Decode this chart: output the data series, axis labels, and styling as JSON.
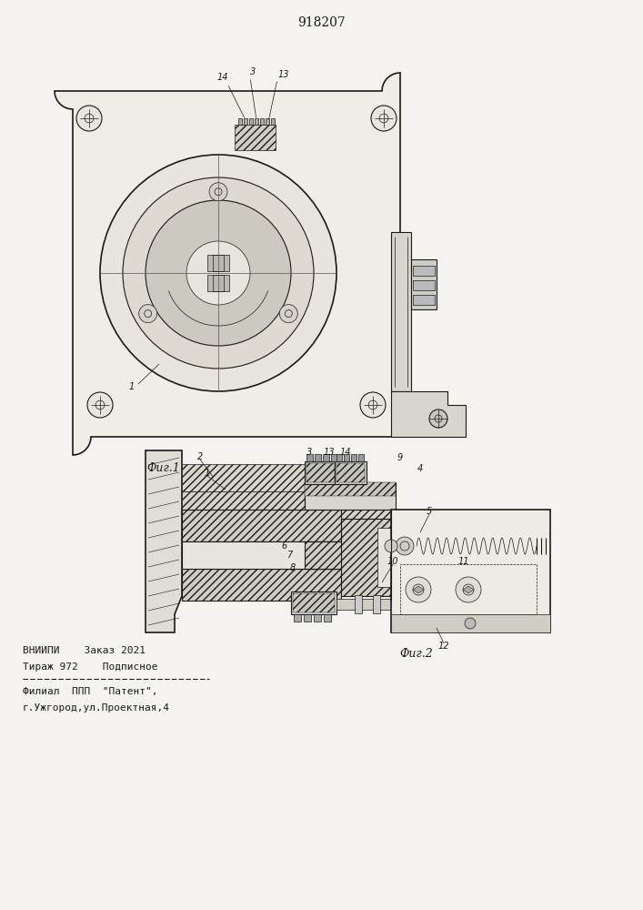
{
  "title": "918207",
  "fig1_label": "Фиг.1",
  "fig2_label": "Фиг.2",
  "footer_line1": "ВНИИПИ    Заказ 2021",
  "footer_line2": "Тираж 972    Подписное",
  "footer_line3": "Филиал  ППП  \"Патент\",",
  "footer_line4": "г.Ужгород,ул.Проектная,4",
  "bg_color": "#f5f3ef",
  "line_color": "#1a1a1a"
}
